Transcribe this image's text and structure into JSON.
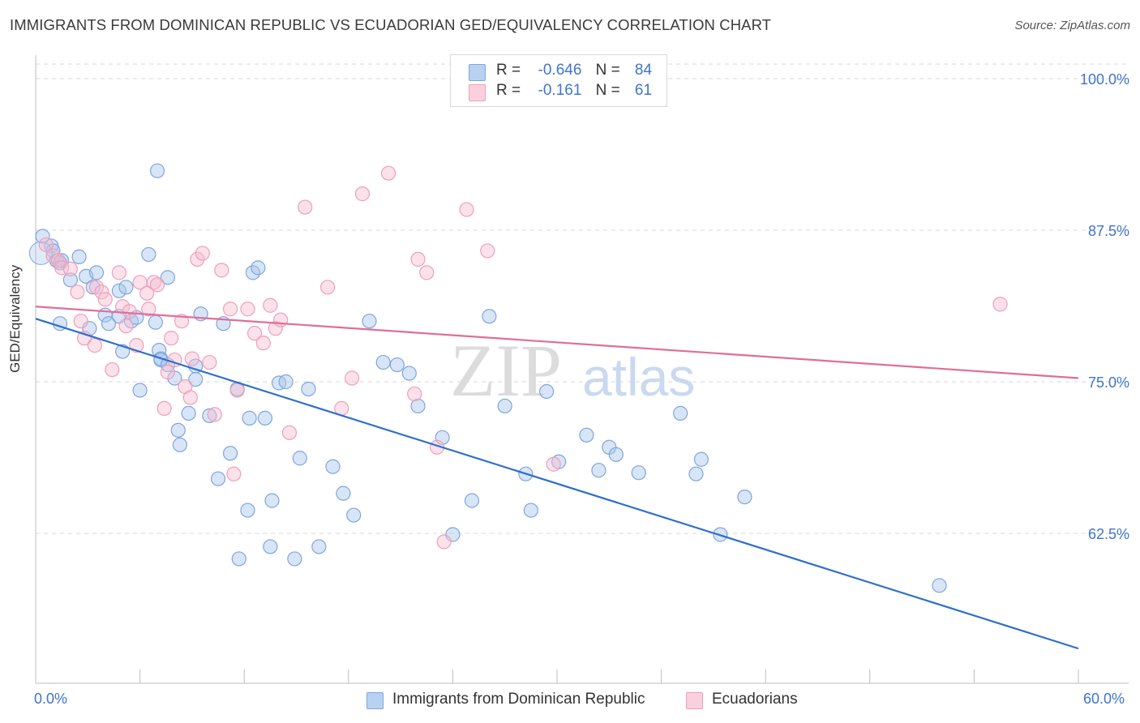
{
  "title": "IMMIGRANTS FROM DOMINICAN REPUBLIC VS ECUADORIAN GED/EQUIVALENCY CORRELATION CHART",
  "source": "Source: ZipAtlas.com",
  "watermark": {
    "zip": "ZIP",
    "atlas": "atlas"
  },
  "legend": {
    "r_label": "R =",
    "n_label": "N =",
    "series": [
      {
        "r": "-0.646",
        "n": "84"
      },
      {
        "r": "-0.161",
        "n": "61"
      }
    ]
  },
  "colors": {
    "blue_fill": "#a9c6ec",
    "blue_stroke": "#7ea6df",
    "blue_line": "#2e6fce",
    "pink_fill": "#f7bcd0",
    "pink_stroke": "#ee9fba",
    "pink_line": "#e06e97",
    "tick_label": "#3f74d0",
    "grid": "#d8d8d8"
  },
  "chart_data": {
    "type": "scatter",
    "title": "IMMIGRANTS FROM DOMINICAN REPUBLIC VS ECUADORIAN GED/EQUIVALENCY CORRELATION CHART",
    "xlabel": "",
    "ylabel": "GED/Equivalency",
    "xlim": [
      0,
      60
    ],
    "ylim": [
      50,
      101
    ],
    "x_tick_labels": [
      "0.0%",
      "60.0%"
    ],
    "y_ticks": [
      100,
      87.5,
      75,
      62.5
    ],
    "y_tick_labels": [
      "100.0%",
      "87.5%",
      "75.0%",
      "62.5%"
    ],
    "grid": "horizontal dashed",
    "legend_position": "top-center",
    "series": [
      {
        "name": "Immigrants from Dominican Republic",
        "color": "#7ea6df",
        "trend": {
          "x": [
            0,
            60
          ],
          "y": [
            80.2,
            53.0
          ]
        },
        "points": [
          [
            0.4,
            87.0
          ],
          [
            0.9,
            86.2
          ],
          [
            1.2,
            85.0
          ],
          [
            1.4,
            84.8
          ],
          [
            1.5,
            85.0
          ],
          [
            2.0,
            83.4
          ],
          [
            2.9,
            83.7
          ],
          [
            1.4,
            79.8
          ],
          [
            3.3,
            82.8
          ],
          [
            4.8,
            82.5
          ],
          [
            3.1,
            79.4
          ],
          [
            4.0,
            80.5
          ],
          [
            4.2,
            79.8
          ],
          [
            4.8,
            80.4
          ],
          [
            5.0,
            77.5
          ],
          [
            5.2,
            82.8
          ],
          [
            5.5,
            80.0
          ],
          [
            5.8,
            80.3
          ],
          [
            6.0,
            74.3
          ],
          [
            6.5,
            85.5
          ],
          [
            6.9,
            79.9
          ],
          [
            7.1,
            77.6
          ],
          [
            7.2,
            76.9
          ],
          [
            7.6,
            83.6
          ],
          [
            7.0,
            92.4
          ],
          [
            7.2,
            76.8
          ],
          [
            7.6,
            76.4
          ],
          [
            8.0,
            75.3
          ],
          [
            8.3,
            69.8
          ],
          [
            8.8,
            72.4
          ],
          [
            8.2,
            71.0
          ],
          [
            9.2,
            75.2
          ],
          [
            9.2,
            76.3
          ],
          [
            9.5,
            80.6
          ],
          [
            10.0,
            72.2
          ],
          [
            10.5,
            67.0
          ],
          [
            10.8,
            79.8
          ],
          [
            11.2,
            69.1
          ],
          [
            11.6,
            74.4
          ],
          [
            12.3,
            72.0
          ],
          [
            11.7,
            60.4
          ],
          [
            12.2,
            64.4
          ],
          [
            12.5,
            84.0
          ],
          [
            12.8,
            84.4
          ],
          [
            13.2,
            72.0
          ],
          [
            13.5,
            61.4
          ],
          [
            13.6,
            65.2
          ],
          [
            14.0,
            74.9
          ],
          [
            14.4,
            75.0
          ],
          [
            14.9,
            60.4
          ],
          [
            15.2,
            68.7
          ],
          [
            15.7,
            74.4
          ],
          [
            16.3,
            61.4
          ],
          [
            17.1,
            68.0
          ],
          [
            17.7,
            65.8
          ],
          [
            18.3,
            64.0
          ],
          [
            19.2,
            80.0
          ],
          [
            20.0,
            76.6
          ],
          [
            20.8,
            76.4
          ],
          [
            21.5,
            75.7
          ],
          [
            22.0,
            73.0
          ],
          [
            23.4,
            70.4
          ],
          [
            24.0,
            62.4
          ],
          [
            25.1,
            65.2
          ],
          [
            26.1,
            80.4
          ],
          [
            27.0,
            73.0
          ],
          [
            28.2,
            67.4
          ],
          [
            28.5,
            64.4
          ],
          [
            29.4,
            74.2
          ],
          [
            30.1,
            68.4
          ],
          [
            31.7,
            70.6
          ],
          [
            32.4,
            67.7
          ],
          [
            33.0,
            69.6
          ],
          [
            33.4,
            69.0
          ],
          [
            34.7,
            67.5
          ],
          [
            38.0,
            67.4
          ],
          [
            38.3,
            68.6
          ],
          [
            39.4,
            62.4
          ],
          [
            40.8,
            65.5
          ],
          [
            52.0,
            58.2
          ],
          [
            37.1,
            72.4
          ],
          [
            2.5,
            85.3
          ],
          [
            3.5,
            84.0
          ],
          [
            1.0,
            85.8
          ]
        ]
      },
      {
        "name": "Ecuadorians",
        "color": "#ee9fba",
        "trend": {
          "x": [
            0,
            60
          ],
          "y": [
            81.2,
            75.3
          ]
        },
        "points": [
          [
            0.6,
            86.3
          ],
          [
            1.0,
            85.4
          ],
          [
            1.3,
            85.0
          ],
          [
            1.5,
            84.4
          ],
          [
            2.0,
            84.3
          ],
          [
            2.4,
            82.4
          ],
          [
            2.6,
            80.0
          ],
          [
            2.8,
            78.6
          ],
          [
            3.4,
            78.0
          ],
          [
            3.5,
            82.8
          ],
          [
            3.8,
            82.4
          ],
          [
            4.0,
            81.8
          ],
          [
            4.4,
            76.0
          ],
          [
            4.8,
            84.0
          ],
          [
            5.0,
            81.2
          ],
          [
            5.4,
            80.8
          ],
          [
            5.8,
            78.0
          ],
          [
            6.0,
            83.2
          ],
          [
            6.4,
            82.3
          ],
          [
            6.5,
            81.0
          ],
          [
            6.8,
            83.2
          ],
          [
            7.0,
            83.0
          ],
          [
            7.4,
            72.8
          ],
          [
            7.6,
            75.8
          ],
          [
            7.8,
            78.6
          ],
          [
            8.0,
            76.8
          ],
          [
            8.4,
            80.0
          ],
          [
            8.6,
            74.6
          ],
          [
            8.9,
            73.7
          ],
          [
            9.3,
            85.1
          ],
          [
            9.6,
            85.6
          ],
          [
            10.0,
            76.6
          ],
          [
            10.3,
            72.3
          ],
          [
            10.7,
            84.2
          ],
          [
            11.2,
            81.0
          ],
          [
            11.4,
            67.4
          ],
          [
            11.6,
            74.3
          ],
          [
            12.2,
            81.0
          ],
          [
            12.6,
            79.0
          ],
          [
            13.1,
            78.2
          ],
          [
            13.5,
            81.3
          ],
          [
            13.8,
            79.4
          ],
          [
            14.1,
            80.1
          ],
          [
            14.6,
            70.8
          ],
          [
            15.5,
            89.4
          ],
          [
            16.8,
            82.8
          ],
          [
            17.6,
            72.8
          ],
          [
            18.2,
            75.3
          ],
          [
            18.8,
            90.5
          ],
          [
            20.3,
            92.2
          ],
          [
            21.8,
            74.0
          ],
          [
            22.0,
            85.1
          ],
          [
            22.5,
            84.0
          ],
          [
            23.1,
            69.6
          ],
          [
            23.5,
            61.8
          ],
          [
            24.8,
            89.2
          ],
          [
            26.0,
            85.8
          ],
          [
            29.8,
            68.2
          ],
          [
            55.5,
            81.4
          ],
          [
            5.2,
            79.6
          ],
          [
            9.0,
            76.9
          ]
        ]
      }
    ]
  },
  "bottom_legend": [
    "Immigrants from Dominican Republic",
    "Ecuadorians"
  ]
}
